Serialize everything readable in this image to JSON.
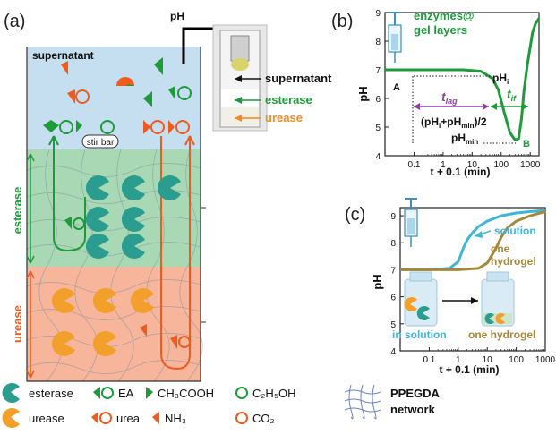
{
  "panel_a": {
    "label": "(a)",
    "ph_label": "pH",
    "supernatant_label": "supernatant",
    "stir_bar_label": "stir bar",
    "esterase_label": "esterase",
    "urease_label": "urease",
    "inset_labels": {
      "supernatant": "supernatant",
      "esterase": "esterase",
      "urease": "urease"
    },
    "legend": {
      "esterase": "esterase",
      "ea": "EA",
      "acetic_acid": "CH₃COOH",
      "ethanol": "C₂H₅OH",
      "urease": "urease",
      "urea": "urea",
      "ammonia": "NH₃",
      "co2": "CO₂",
      "network": "PPEGDA\nnetwork",
      "network_line1": "PPEGDA",
      "network_line2": "network"
    },
    "colors": {
      "green": "#1e9a3b",
      "orange": "#f08a23",
      "orange_red": "#ef5a1e",
      "supernatant_bg": "#c5dff0",
      "esterase_bg": "#a9d9b4",
      "urease_bg": "#f7b59b",
      "teal": "#2a9d8f"
    }
  },
  "chart_data": [
    {
      "panel": "(b)",
      "type": "line",
      "xlabel": "t + 0.1 (min)",
      "ylabel": "pH",
      "xscale": "log",
      "xlim": [
        0.01,
        2000
      ],
      "ylim": [
        4,
        9
      ],
      "xticks": [
        "0.1",
        "1",
        "10",
        "100",
        "1000"
      ],
      "yticks": [
        "4",
        "5",
        "6",
        "7",
        "8",
        "9"
      ],
      "series": [
        {
          "name": "",
          "color": "#1e9a3b",
          "x": [
            0.01,
            0.1,
            1,
            5,
            20,
            50,
            80,
            120,
            200,
            300,
            400,
            500,
            600,
            800,
            1000,
            1200,
            1500,
            2000
          ],
          "y": [
            7.0,
            7.0,
            7.0,
            7.0,
            6.95,
            6.7,
            6.3,
            5.6,
            4.8,
            4.55,
            4.6,
            5.3,
            6.2,
            7.2,
            7.8,
            8.3,
            8.6,
            8.8
          ]
        }
      ],
      "annotations": {
        "label_top": "enzymes@",
        "label_bottom": "gel layers",
        "point_a": "A",
        "point_b": "B",
        "phi": "pH",
        "phi_sub": "i",
        "t_lag": "t",
        "t_lag_sub": "lag",
        "t_if": "t",
        "t_if_sub": "if",
        "mid_expr_a": "(pH",
        "mid_expr_b": "i",
        "mid_expr_c": "+pH",
        "mid_expr_d": "min",
        "mid_expr_e": ")/2",
        "phmin": "pH",
        "phmin_sub": "min"
      }
    },
    {
      "panel": "(c)",
      "type": "line",
      "xlabel": "t + 0.1 (min)",
      "ylabel": "pH",
      "xscale": "log",
      "xlim": [
        0.01,
        1000
      ],
      "ylim": [
        4,
        9.3
      ],
      "xticks": [
        "0.1",
        "1",
        "10",
        "100",
        "1000"
      ],
      "yticks": [
        "4",
        "5",
        "6",
        "7",
        "8",
        "9"
      ],
      "series": [
        {
          "name": "solution",
          "color": "#3fb6d9",
          "x": [
            0.01,
            0.1,
            0.5,
            1,
            1.5,
            2,
            3,
            5,
            10,
            30,
            100,
            300,
            1000
          ],
          "y": [
            7.0,
            7.0,
            7.05,
            7.3,
            7.8,
            8.1,
            8.35,
            8.6,
            8.8,
            9.0,
            9.1,
            9.15,
            9.2
          ]
        },
        {
          "name": "one hydrogel",
          "color": "#a5893a",
          "x": [
            0.01,
            0.1,
            1,
            5,
            10,
            20,
            30,
            50,
            100,
            300,
            1000
          ],
          "y": [
            7.0,
            7.0,
            7.0,
            7.05,
            7.25,
            7.8,
            8.2,
            8.55,
            8.8,
            9.0,
            9.15
          ]
        }
      ],
      "annotations": {
        "in_solution": "in solution",
        "one_hydrogel": "one hydrogel"
      }
    }
  ]
}
